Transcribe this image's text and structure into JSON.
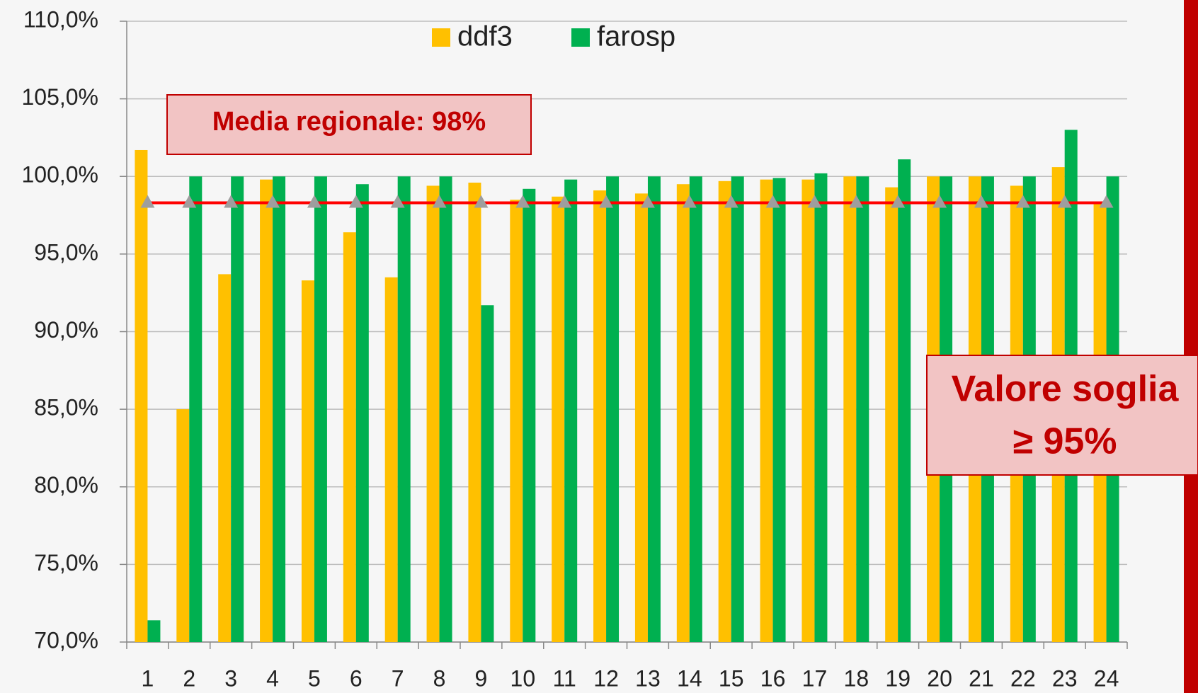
{
  "chart_data": {
    "type": "bar",
    "categories": [
      "1",
      "2",
      "3",
      "4",
      "5",
      "6",
      "7",
      "8",
      "9",
      "10",
      "11",
      "12",
      "13",
      "14",
      "15",
      "16",
      "17",
      "18",
      "19",
      "20",
      "21",
      "22",
      "23",
      "24"
    ],
    "series": [
      {
        "name": "ddf3",
        "color": "#ffc000",
        "values": [
          101.7,
          85.0,
          93.7,
          99.8,
          93.3,
          96.4,
          93.5,
          99.4,
          99.6,
          98.5,
          98.7,
          99.1,
          98.9,
          99.5,
          99.7,
          99.8,
          99.8,
          100,
          99.3,
          100,
          100,
          99.4,
          100.6,
          98.3
        ]
      },
      {
        "name": "farosp",
        "color": "#00b050",
        "values": [
          71.4,
          100,
          100,
          100,
          100,
          99.5,
          100,
          100,
          91.7,
          99.2,
          99.8,
          100,
          100,
          100,
          100,
          99.9,
          100.2,
          100,
          101.1,
          100,
          100,
          100,
          103,
          100
        ]
      },
      {
        "type": "line",
        "color": "#ff0000",
        "marker_color": "#9e9e9e",
        "values": [
          98.3,
          98.3,
          98.3,
          98.3,
          98.3,
          98.3,
          98.3,
          98.3,
          98.3,
          98.3,
          98.3,
          98.3,
          98.3,
          98.3,
          98.3,
          98.3,
          98.3,
          98.3,
          98.3,
          98.3,
          98.3,
          98.3,
          98.3,
          98.3
        ]
      }
    ],
    "ylim": [
      70,
      110
    ],
    "yticks": [
      {
        "value": 70,
        "label": "70,0%"
      },
      {
        "value": 75,
        "label": "75,0%"
      },
      {
        "value": 80,
        "label": "80,0%"
      },
      {
        "value": 85,
        "label": "85,0%"
      },
      {
        "value": 90,
        "label": "90,0%"
      },
      {
        "value": 95,
        "label": "95,0%"
      },
      {
        "value": 100,
        "label": "100,0%"
      },
      {
        "value": 105,
        "label": "105,0%"
      },
      {
        "value": 110,
        "label": "110,0%"
      }
    ],
    "grid": true,
    "annotations": [
      "Media regionale: 98%",
      [
        "Valore soglia",
        "≥ 95%"
      ]
    ]
  }
}
